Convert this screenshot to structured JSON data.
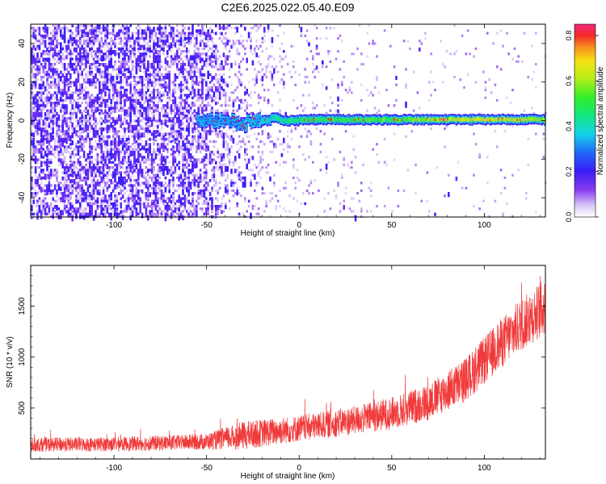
{
  "title": "C2E6.2025.022.05.40.E09",
  "chart_data": [
    {
      "type": "heatmap",
      "xlabel": "Height of straight line (km)",
      "ylabel": "Frequency (Hz)",
      "xlim": [
        -145,
        133
      ],
      "ylim": [
        -50,
        50
      ],
      "x_ticks": [
        -100,
        -50,
        0,
        50,
        100
      ],
      "y_ticks": [
        -40,
        -20,
        0,
        20,
        40
      ],
      "colorbar": {
        "label": "Normalized spectral amplitude",
        "range": [
          0,
          0.85
        ],
        "ticks": [
          0.0,
          0.2,
          0.4,
          0.6,
          0.8
        ]
      },
      "ridge": {
        "frequency": 0,
        "x_start": -55,
        "x_end": 133,
        "amplitude": [
          [
            -55,
            0.3
          ],
          [
            -35,
            0.25
          ],
          [
            0,
            0.5
          ],
          [
            50,
            0.55
          ],
          [
            100,
            0.7
          ],
          [
            133,
            0.6
          ]
        ]
      },
      "noise": {
        "density": [
          [
            -145,
            0.95
          ],
          [
            -60,
            0.85
          ],
          [
            -30,
            0.35
          ],
          [
            0,
            0.12
          ],
          [
            60,
            0.05
          ],
          [
            133,
            0.03
          ]
        ]
      }
    },
    {
      "type": "line",
      "xlabel": "Height of straight line (km)",
      "ylabel": "SNR (10 * v/v)",
      "xlim": [
        -145,
        133
      ],
      "ylim": [
        0,
        1900
      ],
      "x_ticks": [
        -100,
        -50,
        0,
        50,
        100
      ],
      "y_ticks": [
        500,
        1000,
        1500
      ],
      "color": "#f03a3a",
      "envelope": {
        "x": [
          -145,
          -100,
          -50,
          -30,
          0,
          30,
          50,
          70,
          90,
          110,
          120,
          133
        ],
        "mean": [
          140,
          145,
          170,
          230,
          300,
          380,
          450,
          560,
          780,
          1150,
          1320,
          1500
        ],
        "half_width": [
          70,
          70,
          80,
          140,
          130,
          140,
          160,
          180,
          220,
          250,
          260,
          280
        ]
      }
    }
  ]
}
